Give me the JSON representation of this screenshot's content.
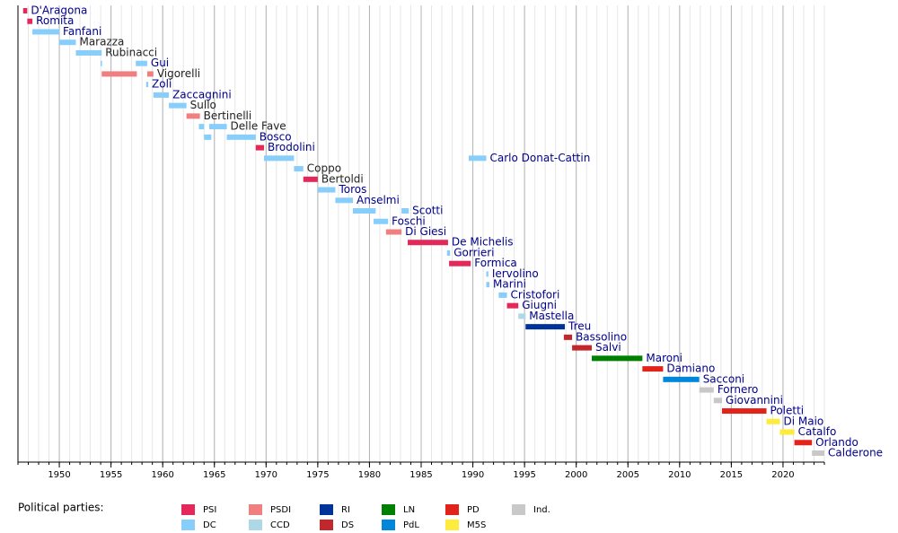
{
  "chart_data": {
    "type": "timeline",
    "xlim": [
      1946,
      2024
    ],
    "xticks": [
      1950,
      1955,
      1960,
      1965,
      1970,
      1975,
      1980,
      1985,
      1990,
      1995,
      2000,
      2005,
      2010,
      2015,
      2020
    ],
    "minor_grid_step": 1,
    "grid": true,
    "legend_title": "Political parties:",
    "parties": [
      {
        "name": "PSI",
        "color": "#e4285a"
      },
      {
        "name": "DC",
        "color": "#87cefa"
      },
      {
        "name": "PSDI",
        "color": "#f08080"
      },
      {
        "name": "CCD",
        "color": "#add8e6"
      },
      {
        "name": "RI",
        "color": "#003399"
      },
      {
        "name": "DS",
        "color": "#c1272d"
      },
      {
        "name": "LN",
        "color": "#008000"
      },
      {
        "name": "PdL",
        "color": "#0087dc"
      },
      {
        "name": "PD",
        "color": "#e2231a"
      },
      {
        "name": "M5S",
        "color": "#ffeb3b"
      },
      {
        "name": "Ind.",
        "color": "#c8c8c8"
      }
    ],
    "rows": [
      {
        "name": "D'Aragona",
        "label_color": "#00008b",
        "bars": [
          {
            "start": 1946.5,
            "end": 1946.9,
            "party": "PSI"
          }
        ]
      },
      {
        "name": "Romita",
        "label_color": "#00008b",
        "bars": [
          {
            "start": 1946.9,
            "end": 1947.4,
            "party": "PSI"
          }
        ]
      },
      {
        "name": "Fanfani",
        "label_color": "#00008b",
        "bars": [
          {
            "start": 1947.4,
            "end": 1950.0,
            "party": "DC"
          }
        ]
      },
      {
        "name": "Marazza",
        "label_color": "#222222",
        "bars": [
          {
            "start": 1950.0,
            "end": 1951.6,
            "party": "DC"
          }
        ]
      },
      {
        "name": "Rubinacci",
        "label_color": "#222222",
        "bars": [
          {
            "start": 1951.6,
            "end": 1954.1,
            "party": "DC"
          }
        ]
      },
      {
        "name": "Gui",
        "label_color": "#00008b",
        "bars": [
          {
            "start": 1954.0,
            "end": 1954.1,
            "party": "DC"
          },
          {
            "start": 1957.4,
            "end": 1958.5,
            "party": "DC"
          }
        ]
      },
      {
        "name": "Vigorelli",
        "label_color": "#222222",
        "bars": [
          {
            "start": 1954.1,
            "end": 1957.5,
            "party": "PSDI"
          },
          {
            "start": 1958.5,
            "end": 1959.1,
            "party": "PSDI"
          }
        ]
      },
      {
        "name": "Zoli",
        "label_color": "#00008b",
        "bars": [
          {
            "start": 1958.4,
            "end": 1958.6,
            "party": "DC"
          }
        ]
      },
      {
        "name": "Zaccagnini",
        "label_color": "#00008b",
        "bars": [
          {
            "start": 1959.1,
            "end": 1960.6,
            "party": "DC"
          }
        ]
      },
      {
        "name": "Sullo",
        "label_color": "#222222",
        "bars": [
          {
            "start": 1960.6,
            "end": 1962.3,
            "party": "DC"
          }
        ]
      },
      {
        "name": "Bertinelli",
        "label_color": "#222222",
        "bars": [
          {
            "start": 1962.3,
            "end": 1963.6,
            "party": "PSDI"
          }
        ]
      },
      {
        "name": "Delle Fave",
        "label_color": "#222222",
        "bars": [
          {
            "start": 1963.5,
            "end": 1964.0,
            "party": "DC"
          },
          {
            "start": 1964.5,
            "end": 1966.2,
            "party": "DC"
          }
        ]
      },
      {
        "name": "Bosco",
        "label_color": "#00008b",
        "bars": [
          {
            "start": 1964.0,
            "end": 1964.7,
            "party": "DC"
          },
          {
            "start": 1966.2,
            "end": 1969.0,
            "party": "DC"
          }
        ]
      },
      {
        "name": "Brodolini",
        "label_color": "#00008b",
        "bars": [
          {
            "start": 1969.0,
            "end": 1969.8,
            "party": "PSI"
          }
        ]
      },
      {
        "name": "Carlo Donat-Cattin",
        "label_color": "#00008b",
        "bars": [
          {
            "start": 1969.8,
            "end": 1972.7,
            "party": "DC"
          },
          {
            "start": 1989.6,
            "end": 1991.3,
            "party": "DC"
          }
        ]
      },
      {
        "name": "Coppo",
        "label_color": "#222222",
        "bars": [
          {
            "start": 1972.7,
            "end": 1973.6,
            "party": "DC"
          }
        ]
      },
      {
        "name": "Bertoldi",
        "label_color": "#222222",
        "bars": [
          {
            "start": 1973.6,
            "end": 1975.0,
            "party": "PSI"
          }
        ]
      },
      {
        "name": "Toros",
        "label_color": "#00008b",
        "bars": [
          {
            "start": 1975.0,
            "end": 1976.7,
            "party": "DC"
          }
        ]
      },
      {
        "name": "Anselmi",
        "label_color": "#00008b",
        "bars": [
          {
            "start": 1976.7,
            "end": 1978.4,
            "party": "DC"
          }
        ]
      },
      {
        "name": "Scotti",
        "label_color": "#00008b",
        "bars": [
          {
            "start": 1978.4,
            "end": 1980.6,
            "party": "DC"
          },
          {
            "start": 1983.1,
            "end": 1983.8,
            "party": "DC"
          }
        ]
      },
      {
        "name": "Foschi",
        "label_color": "#00008b",
        "bars": [
          {
            "start": 1980.4,
            "end": 1981.8,
            "party": "DC"
          }
        ]
      },
      {
        "name": "Di Giesi",
        "label_color": "#00008b",
        "bars": [
          {
            "start": 1981.6,
            "end": 1983.1,
            "party": "PSDI"
          }
        ]
      },
      {
        "name": "De Michelis",
        "label_color": "#00008b",
        "bars": [
          {
            "start": 1983.7,
            "end": 1987.6,
            "party": "PSI"
          }
        ]
      },
      {
        "name": "Gorrieri",
        "label_color": "#00008b",
        "bars": [
          {
            "start": 1987.5,
            "end": 1987.8,
            "party": "DC"
          }
        ]
      },
      {
        "name": "Formica",
        "label_color": "#00008b",
        "bars": [
          {
            "start": 1987.7,
            "end": 1989.8,
            "party": "PSI"
          }
        ]
      },
      {
        "name": "Iervolino",
        "label_color": "#00008b",
        "bars": [
          {
            "start": 1991.3,
            "end": 1991.5,
            "party": "DC"
          }
        ]
      },
      {
        "name": "Marini",
        "label_color": "#00008b",
        "bars": [
          {
            "start": 1991.3,
            "end": 1991.6,
            "party": "DC"
          }
        ]
      },
      {
        "name": "Cristofori",
        "label_color": "#00008b",
        "bars": [
          {
            "start": 1992.5,
            "end": 1993.3,
            "party": "DC"
          }
        ]
      },
      {
        "name": "Giugni",
        "label_color": "#00008b",
        "bars": [
          {
            "start": 1993.3,
            "end": 1994.4,
            "party": "PSI"
          }
        ]
      },
      {
        "name": "Mastella",
        "label_color": "#00008b",
        "bars": [
          {
            "start": 1994.4,
            "end": 1995.1,
            "party": "CCD"
          }
        ]
      },
      {
        "name": "Treu",
        "label_color": "#00008b",
        "bars": [
          {
            "start": 1995.1,
            "end": 1998.9,
            "party": "RI"
          }
        ]
      },
      {
        "name": "Bassolino",
        "label_color": "#00008b",
        "bars": [
          {
            "start": 1998.8,
            "end": 1999.6,
            "party": "DS"
          }
        ]
      },
      {
        "name": "Salvi",
        "label_color": "#00008b",
        "bars": [
          {
            "start": 1999.6,
            "end": 2001.5,
            "party": "DS"
          }
        ]
      },
      {
        "name": "Maroni",
        "label_color": "#00008b",
        "bars": [
          {
            "start": 2001.5,
            "end": 2006.4,
            "party": "LN"
          }
        ]
      },
      {
        "name": "Damiano",
        "label_color": "#00008b",
        "bars": [
          {
            "start": 2006.4,
            "end": 2008.4,
            "party": "PD"
          }
        ]
      },
      {
        "name": "Sacconi",
        "label_color": "#00008b",
        "bars": [
          {
            "start": 2008.4,
            "end": 2011.9,
            "party": "PdL"
          }
        ]
      },
      {
        "name": "Fornero",
        "label_color": "#00008b",
        "bars": [
          {
            "start": 2011.9,
            "end": 2013.3,
            "party": "Ind."
          }
        ]
      },
      {
        "name": "Giovannini",
        "label_color": "#00008b",
        "bars": [
          {
            "start": 2013.3,
            "end": 2014.1,
            "party": "Ind."
          }
        ]
      },
      {
        "name": "Poletti",
        "label_color": "#00008b",
        "bars": [
          {
            "start": 2014.1,
            "end": 2018.4,
            "party": "PD"
          }
        ]
      },
      {
        "name": "Di Maio",
        "label_color": "#00008b",
        "bars": [
          {
            "start": 2018.4,
            "end": 2019.7,
            "party": "M5S"
          }
        ]
      },
      {
        "name": "Catalfo",
        "label_color": "#00008b",
        "bars": [
          {
            "start": 2019.7,
            "end": 2021.1,
            "party": "M5S"
          }
        ]
      },
      {
        "name": "Orlando",
        "label_color": "#00008b",
        "bars": [
          {
            "start": 2021.1,
            "end": 2022.8,
            "party": "PD"
          }
        ]
      },
      {
        "name": "Calderone",
        "label_color": "#00008b",
        "bars": [
          {
            "start": 2022.8,
            "end": 2024.0,
            "party": "Ind."
          }
        ]
      }
    ]
  }
}
